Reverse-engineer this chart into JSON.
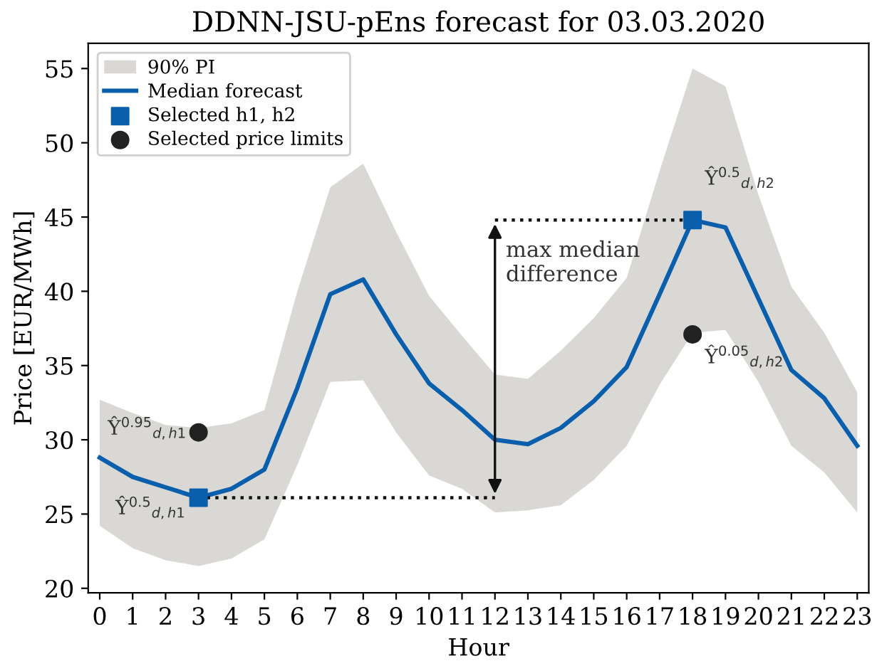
{
  "chart_data": {
    "type": "line",
    "title": "DDNN-JSU-pEns forecast for 03.03.2020",
    "xlabel": "Hour",
    "ylabel": "Price [EUR/MWh]",
    "x": [
      0,
      1,
      2,
      3,
      4,
      5,
      6,
      7,
      8,
      9,
      10,
      11,
      12,
      13,
      14,
      15,
      16,
      17,
      18,
      19,
      20,
      21,
      22,
      23
    ],
    "series": [
      {
        "type": "area",
        "name": "90% PI",
        "color": "#d9d8d4",
        "values": [
          null,
          null,
          null,
          null,
          null,
          null,
          null,
          null,
          null,
          null,
          null,
          null,
          null,
          null,
          null,
          null,
          null,
          null,
          null,
          null,
          null,
          null,
          null,
          null
        ]
      },
      {
        "name": "Median forecast",
        "color": "#0a5fad",
        "values": [
          28.8,
          27.5,
          26.8,
          26.1,
          26.7,
          28.0,
          33.5,
          39.8,
          40.8,
          37.1,
          33.8,
          32.0,
          30.0,
          29.7,
          30.8,
          32.6,
          34.9,
          39.8,
          44.8,
          44.3,
          39.5,
          34.7,
          32.8,
          29.6
        ],
        "lower": [
          24.2,
          22.7,
          21.9,
          21.5,
          22.0,
          23.3,
          28.3,
          33.9,
          34.0,
          30.5,
          27.6,
          26.7,
          25.1,
          25.25,
          25.6,
          27.3,
          29.6,
          33.7,
          37.2,
          37.4,
          33.9,
          29.6,
          27.8,
          25.1
        ],
        "upper": [
          32.7,
          31.8,
          31.0,
          30.8,
          31.1,
          32.0,
          40.0,
          47.0,
          48.6,
          44.0,
          39.7,
          37.0,
          34.4,
          34.1,
          36.0,
          38.2,
          40.9,
          48.1,
          55.0,
          53.8,
          46.5,
          40.3,
          37.2,
          33.2
        ]
      },
      {
        "type": "scatter",
        "name": "Selected h1, h2",
        "color": "#0a5fad",
        "marker": "square",
        "x": [
          3,
          18
        ],
        "values": [
          26.1,
          44.8
        ]
      },
      {
        "type": "scatter",
        "name": "Selected price limits",
        "color": "#222222",
        "marker": "circle",
        "x": [
          3,
          18
        ],
        "values": [
          30.5,
          37.1
        ]
      },
      {
        "type": "line",
        "color": "#111111",
        "line_style": "dotted",
        "x": [
          3,
          12
        ],
        "values": [
          26.1,
          26.1
        ]
      },
      {
        "type": "line",
        "color": "#111111",
        "line_style": "dotted",
        "x": [
          12,
          18
        ],
        "values": [
          44.8,
          44.8
        ]
      }
    ],
    "annotations": [
      "Ŷ$^{0.95}$$_{d,h1}$",
      "Ŷ$^{0.5}$$_{d,h1}$",
      "Ŷ$^{0.5}$$_{d,h2}$",
      "Ŷ$^{0.05}$$_{d,h2}$",
      "max median\ndifference"
    ],
    "xlim": [
      -0.35,
      23.35
    ],
    "xticks": [
      0,
      1,
      2,
      3,
      4,
      5,
      6,
      7,
      8,
      9,
      10,
      11,
      12,
      13,
      14,
      15,
      16,
      17,
      18,
      19,
      20,
      21,
      22,
      23
    ],
    "ylim": [
      19.7,
      56.7
    ],
    "yticks": [
      20,
      25,
      30,
      35,
      40,
      45,
      50,
      55
    ],
    "grid": false,
    "legend": "top left"
  }
}
